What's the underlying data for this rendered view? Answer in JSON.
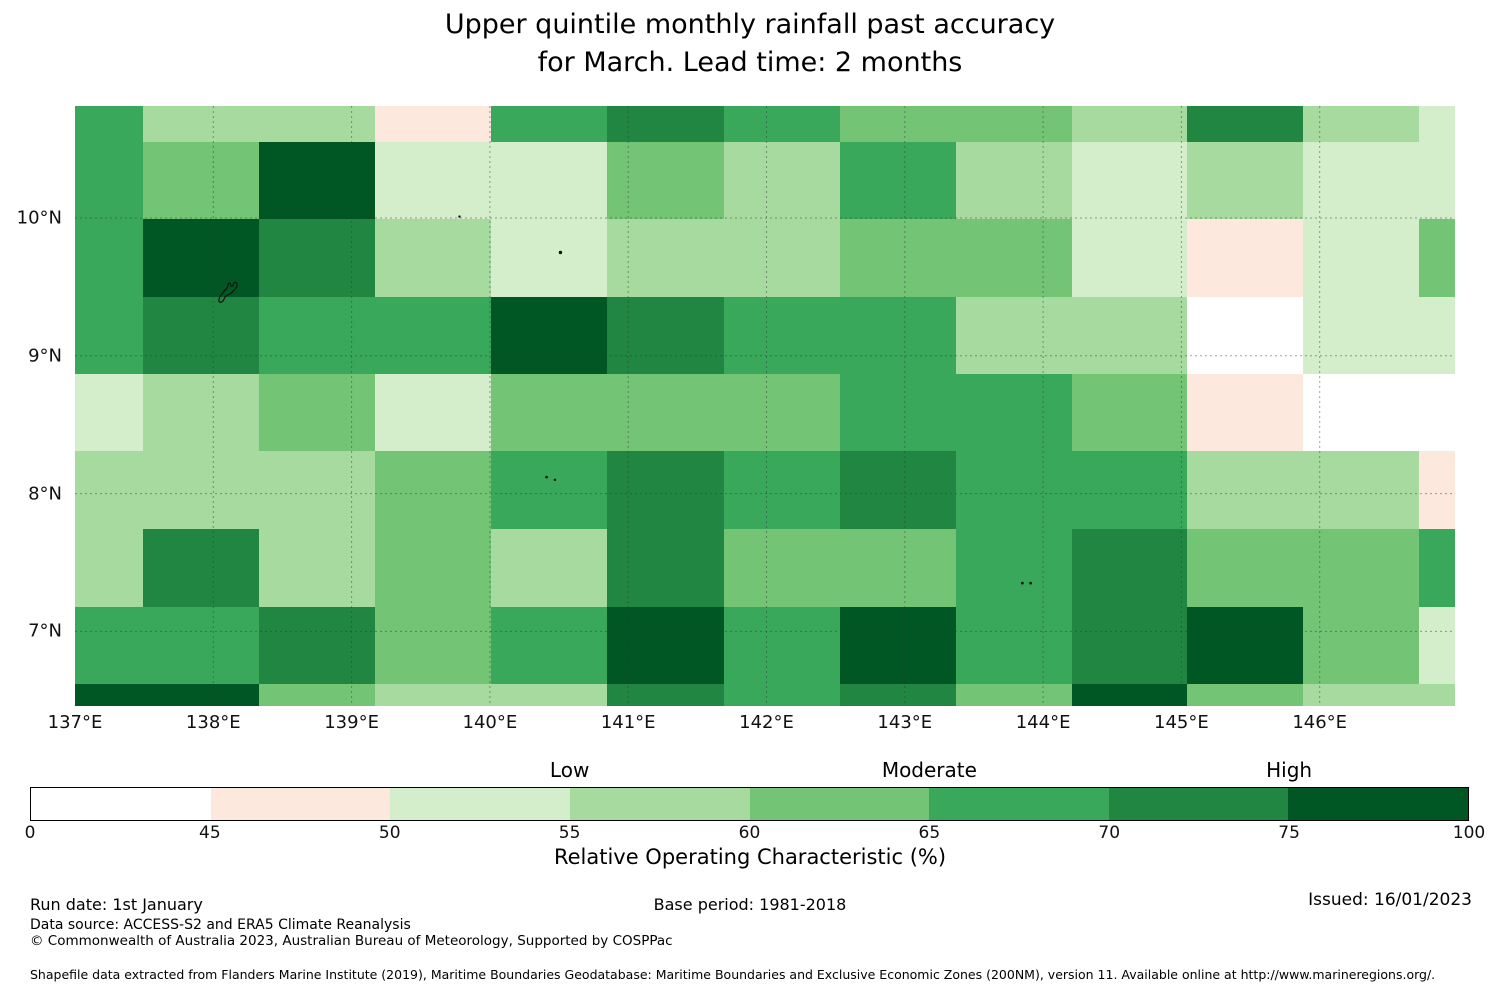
{
  "title": {
    "line1": "Upper quintile monthly rainfall past accuracy",
    "line2": "for March. Lead time: 2 months"
  },
  "map": {
    "x_tick_labels": [
      "137°E",
      "138°E",
      "139°E",
      "140°E",
      "141°E",
      "142°E",
      "143°E",
      "144°E",
      "145°E",
      "146°E"
    ],
    "y_tick_labels": [
      "10°N",
      "9°N",
      "8°N",
      "7°N"
    ]
  },
  "colorbar": {
    "tick_labels": [
      "0",
      "45",
      "50",
      "55",
      "60",
      "65",
      "70",
      "75",
      "100"
    ],
    "region_labels": [
      "Low",
      "Moderate",
      "High"
    ],
    "axis_label": "Relative Operating Characteristic (%)"
  },
  "footer": {
    "run_date": "Run date: 1st January",
    "base_period": "Base period: 1981-2018",
    "issued": "Issued: 16/01/2023",
    "data_source": "Data source: ACCESS-S2 and ERA5 Climate Reanalysis",
    "copyright": "© Commonwealth of Australia 2023, Australian Bureau of Meteorology, Supported by COSPPac",
    "shapefile_note": "Shapefile data extracted from Flanders Marine Institute (2019), Maritime Boundaries Geodatabase: Maritime Boundaries and Exclusive Economic Zones (200NM), version 11. Available online at http://www.marineregions.org/."
  },
  "chart_data": {
    "type": "heatmap",
    "title": "Upper quintile monthly rainfall past accuracy for March. Lead time: 2 months",
    "xlabel_units": "degrees East",
    "ylabel_units": "degrees North",
    "legend_title": "Relative Operating Characteristic (%)",
    "bin_labels": [
      "0-45",
      "45-50",
      "50-55",
      "55-60",
      "60-65",
      "65-70",
      "70-75",
      "75-100"
    ],
    "bin_colors": [
      "#ffffff",
      "#fce8dc",
      "#d4edcb",
      "#a6da9f",
      "#74c476",
      "#3aa85a",
      "#218642",
      "#005723"
    ],
    "x_ticks_deg": [
      137,
      138,
      139,
      140,
      141,
      142,
      143,
      144,
      145,
      146
    ],
    "y_ticks_deg": [
      10,
      9,
      8,
      7
    ],
    "lon_cell_edges_deg": [
      137.0,
      137.49,
      138.33,
      139.17,
      140.01,
      140.85,
      141.69,
      142.53,
      143.37,
      144.21,
      145.04,
      145.88,
      146.72,
      146.98
    ],
    "lat_cell_edges_deg": [
      10.81,
      10.55,
      9.99,
      9.43,
      8.87,
      8.31,
      7.74,
      7.18,
      6.62,
      6.46
    ],
    "cell_bin_index_rows_north_to_south": [
      [
        5,
        3,
        3,
        1,
        5,
        6,
        5,
        4,
        4,
        3,
        6,
        3,
        2
      ],
      [
        5,
        4,
        7,
        2,
        2,
        4,
        3,
        5,
        3,
        2,
        3,
        2,
        2
      ],
      [
        5,
        7,
        6,
        3,
        2,
        3,
        3,
        4,
        4,
        2,
        1,
        2,
        4
      ],
      [
        5,
        6,
        5,
        5,
        7,
        6,
        5,
        5,
        3,
        3,
        0,
        2,
        2
      ],
      [
        2,
        3,
        4,
        2,
        4,
        4,
        4,
        5,
        5,
        4,
        1,
        0,
        0
      ],
      [
        3,
        3,
        3,
        4,
        5,
        6,
        5,
        6,
        5,
        5,
        3,
        3,
        1
      ],
      [
        3,
        6,
        3,
        4,
        3,
        6,
        4,
        4,
        5,
        6,
        4,
        4,
        5
      ],
      [
        5,
        5,
        6,
        4,
        5,
        7,
        5,
        7,
        5,
        6,
        7,
        4,
        2
      ],
      [
        7,
        7,
        4,
        3,
        3,
        6,
        5,
        6,
        4,
        7,
        4,
        3,
        3
      ]
    ],
    "islands": [
      {
        "name": "yap-island",
        "lon": 138.12,
        "lat": 9.52,
        "feature": "outline"
      },
      {
        "name": "islet",
        "lon": 139.78,
        "lat": 10.01,
        "feature": "dot",
        "r": 1.2
      },
      {
        "name": "islet",
        "lon": 140.51,
        "lat": 9.75,
        "feature": "dot",
        "r": 1.7
      },
      {
        "name": "islet",
        "lon": 140.41,
        "lat": 8.12,
        "feature": "dot",
        "r": 1.3
      },
      {
        "name": "islet",
        "lon": 140.47,
        "lat": 8.1,
        "feature": "dot",
        "r": 1.2
      },
      {
        "name": "islet",
        "lon": 143.85,
        "lat": 7.35,
        "feature": "dot",
        "r": 1.4
      },
      {
        "name": "islet",
        "lon": 143.91,
        "lat": 7.35,
        "feature": "dot",
        "r": 1.4
      }
    ],
    "grid_on": true,
    "legend_position": "bottom"
  }
}
